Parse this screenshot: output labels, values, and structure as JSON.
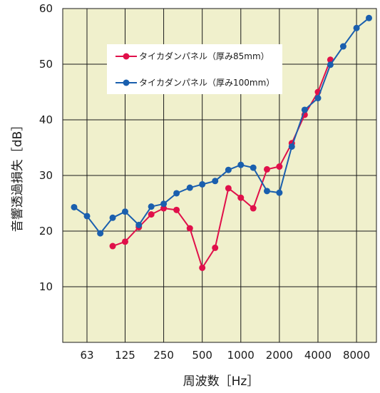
{
  "chart_data": {
    "type": "line",
    "title": "",
    "xlabel": "周波数［Hz］",
    "ylabel": "音響透過損失［dB］",
    "x_scale": "log-octave-third",
    "x_tick_labels": [
      "63",
      "125",
      "250",
      "500",
      "1000",
      "2000",
      "4000",
      "8000"
    ],
    "y_ticks": [
      10,
      20,
      30,
      40,
      50,
      60
    ],
    "ylim": [
      0,
      60
    ],
    "grid": true,
    "legend_position": "top-left inside plot",
    "plot_background": "#f0f0cc",
    "series": [
      {
        "name": "タイカダンパネル（厚み85mm）",
        "color": "#e0104a",
        "x": [
          100,
          125,
          160,
          200,
          250,
          315,
          400,
          500,
          630,
          800,
          1000,
          1250,
          1600,
          2000,
          2500,
          3150,
          4000,
          5000
        ],
        "values": [
          17.3,
          18.1,
          20.7,
          23.0,
          24.1,
          23.8,
          20.5,
          13.4,
          17.0,
          27.7,
          26.0,
          24.1,
          31.1,
          31.6,
          35.8,
          40.9,
          45.0,
          50.8
        ]
      },
      {
        "name": "タイカダンパネル（厚み100mm）",
        "color": "#1a5fae",
        "x": [
          50,
          63,
          80,
          100,
          125,
          160,
          200,
          250,
          315,
          400,
          500,
          630,
          800,
          1000,
          1250,
          1600,
          2000,
          2500,
          3150,
          4000,
          5000,
          6300,
          8000,
          10000
        ],
        "values": [
          24.3,
          22.7,
          19.6,
          22.4,
          23.5,
          21.1,
          24.4,
          24.9,
          26.8,
          27.8,
          28.4,
          29.0,
          31.0,
          31.9,
          31.4,
          27.2,
          26.9,
          35.2,
          41.8,
          43.9,
          49.9,
          53.2,
          56.5,
          58.3
        ]
      }
    ]
  }
}
